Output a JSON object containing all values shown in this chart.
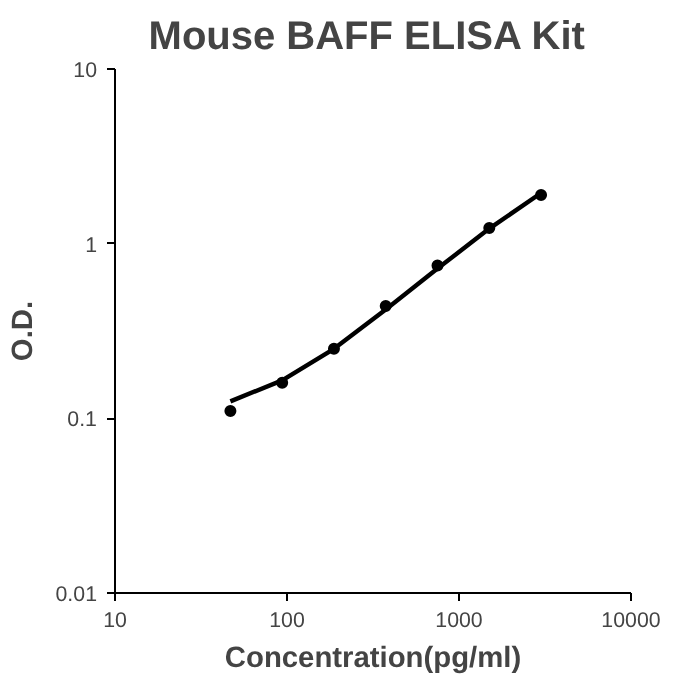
{
  "chart_data": {
    "type": "scatter",
    "title": "Mouse BAFF  ELISA Kit",
    "xlabel": "Concentration(pg/ml)",
    "ylabel": "O.D.",
    "log": "xy",
    "grid": false,
    "xlim": [
      10,
      10000
    ],
    "ylim": [
      0.01,
      10
    ],
    "xticks": [
      10,
      100,
      1000,
      10000
    ],
    "yticks": [
      0.01,
      0.1,
      1,
      10
    ],
    "series": [
      {
        "marker": "circle",
        "color": "#000000",
        "x": [
          46.875,
          93.75,
          187.5,
          375,
          750,
          1500,
          3000
        ],
        "values": [
          0.11,
          0.16,
          0.25,
          0.44,
          0.75,
          1.23,
          1.9
        ]
      },
      {
        "type": "line",
        "marker": "none",
        "color": "#000000",
        "x": [
          46.875,
          93.75,
          187.5,
          375,
          750,
          1500,
          3000
        ],
        "values": [
          0.125,
          0.165,
          0.25,
          0.42,
          0.72,
          1.22,
          1.95
        ]
      }
    ]
  }
}
